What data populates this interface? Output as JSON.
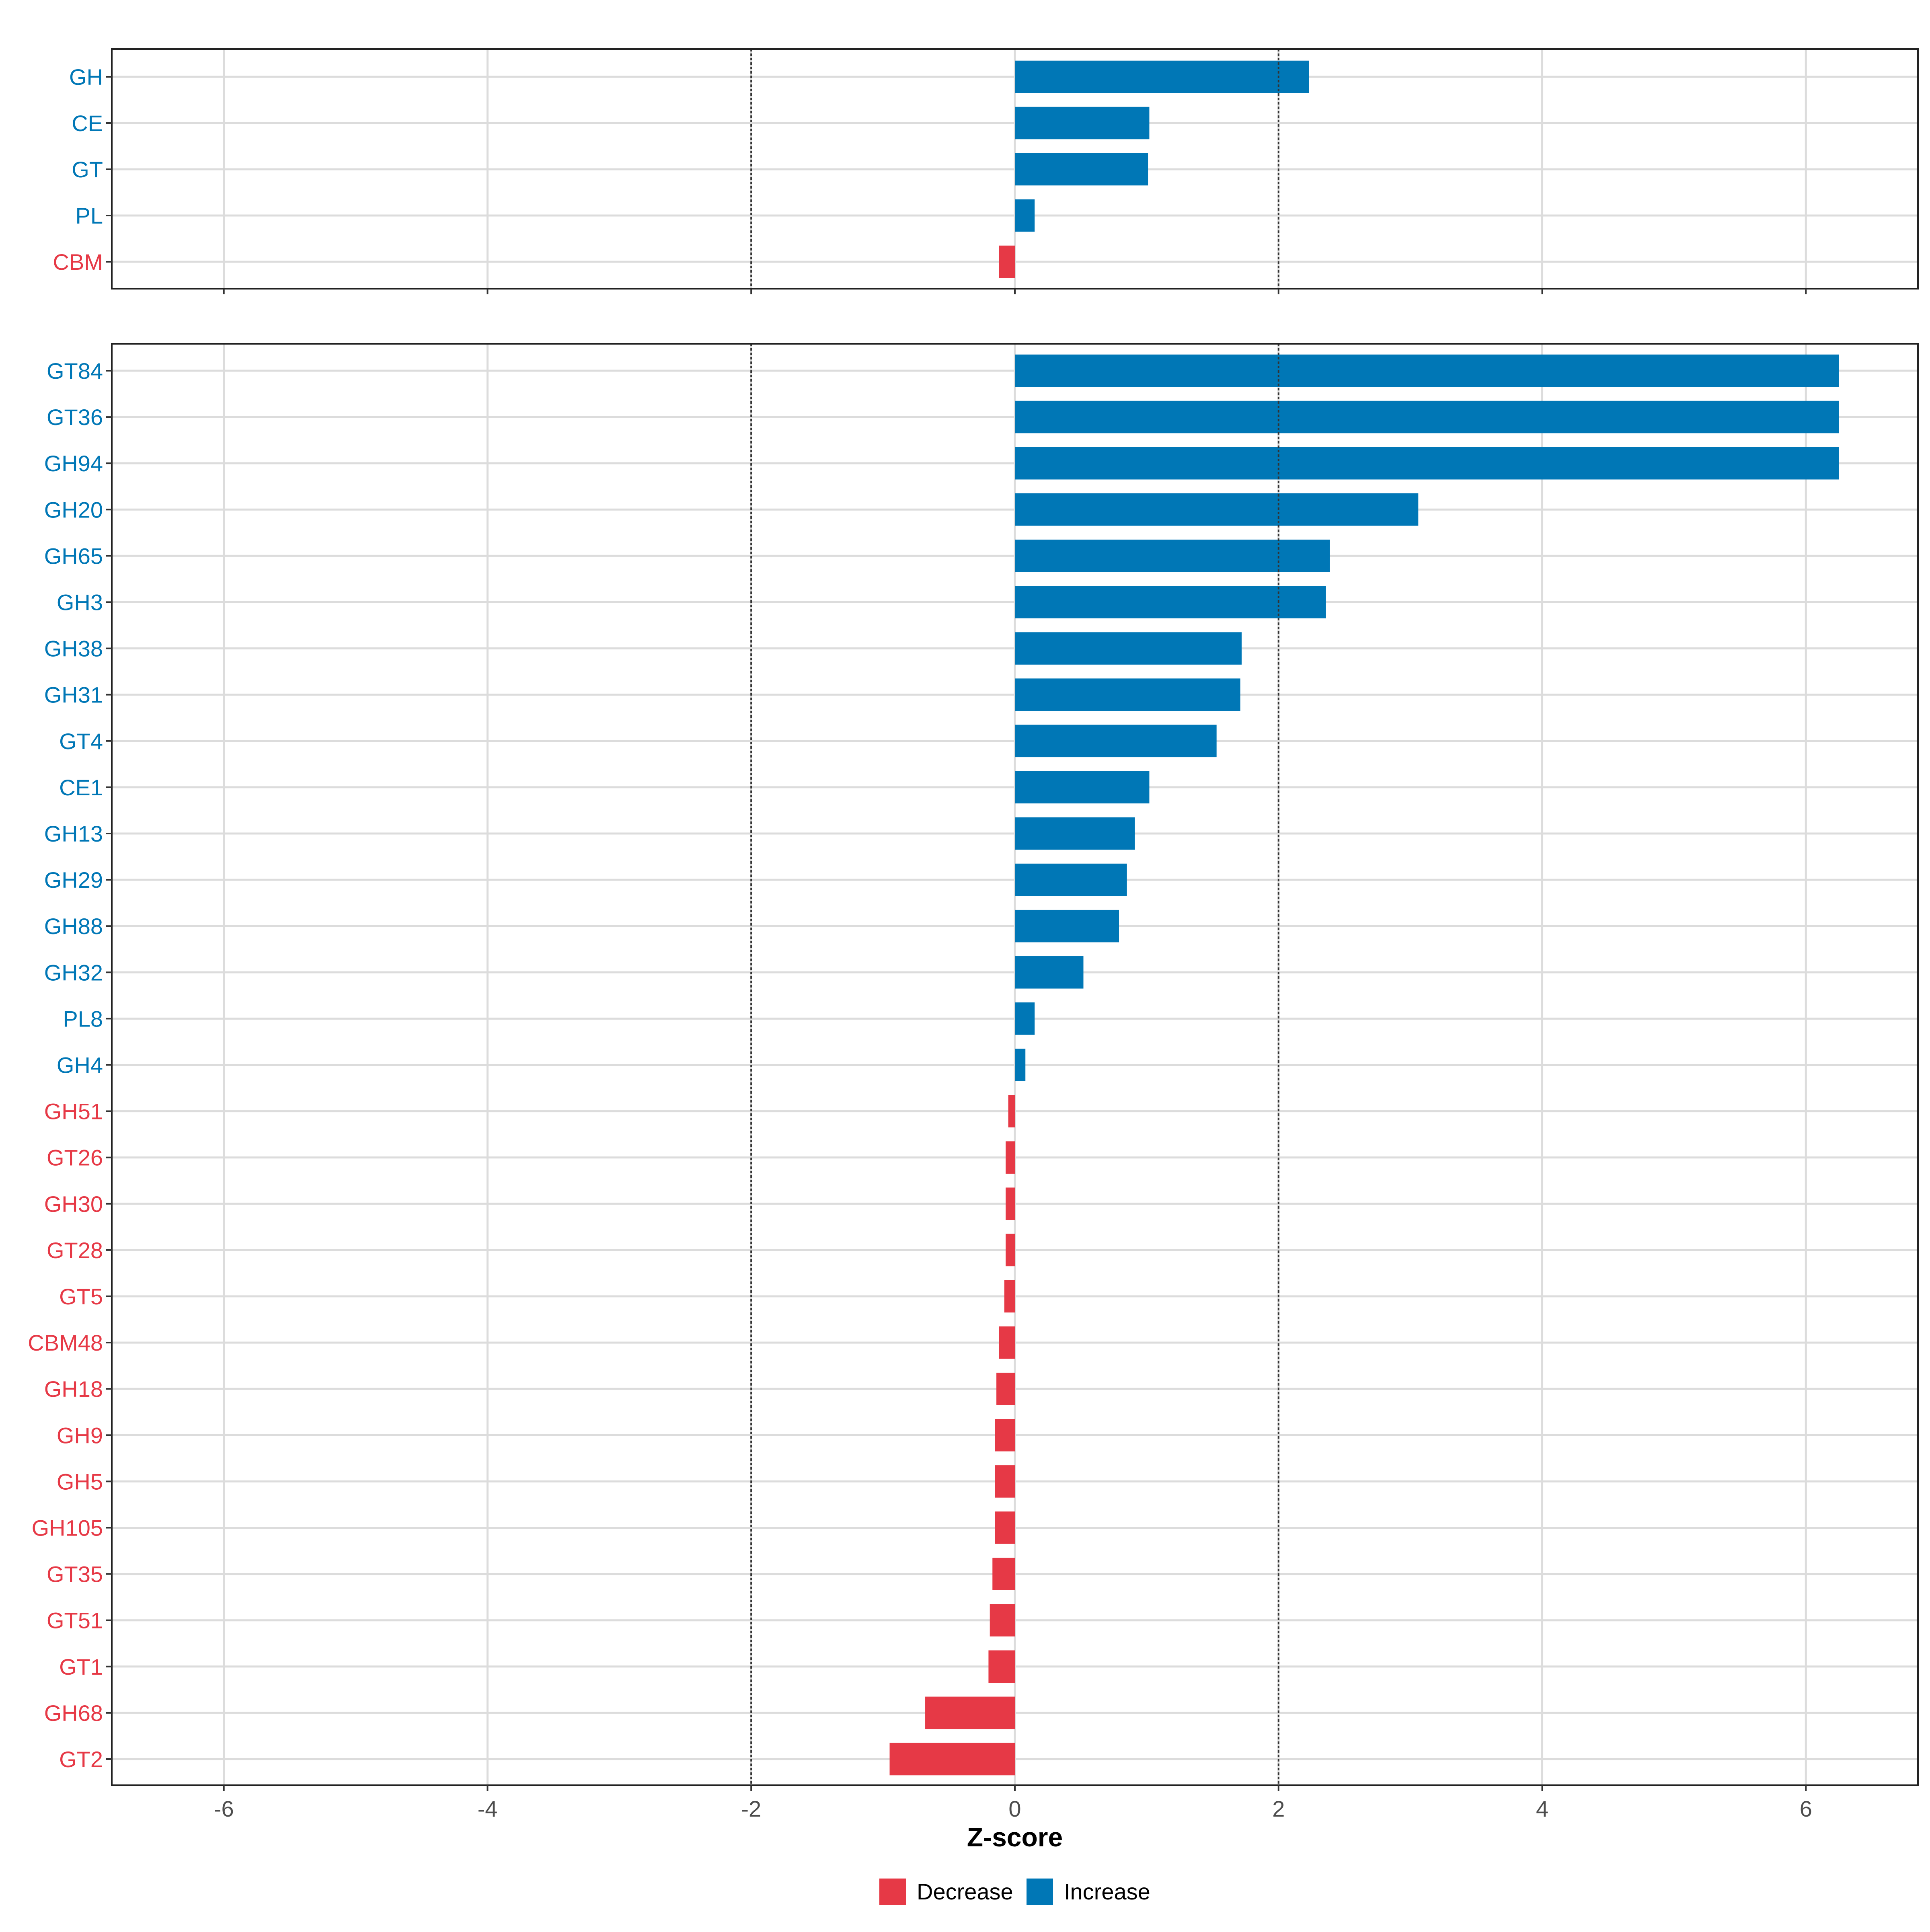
{
  "chart_data": {
    "type": "bar",
    "orientation": "horizontal",
    "xlabel": "Z-score",
    "ylabel": "",
    "xlim": [
      -6.85,
      6.85
    ],
    "x_ticks": [
      -6,
      -4,
      -2,
      0,
      2,
      4,
      6
    ],
    "x_tick_labels": [
      "-6",
      "-4",
      "-2",
      "0",
      "2",
      "4",
      "6"
    ],
    "reference_lines": [
      -2,
      2
    ],
    "grid": true,
    "colors": {
      "Decrease": "#E63946",
      "Increase": "#0077B6"
    },
    "legend": {
      "position": "bottom",
      "entries": [
        {
          "label": "Decrease",
          "color": "#E63946"
        },
        {
          "label": "Increase",
          "color": "#0077B6"
        }
      ]
    },
    "panels": [
      {
        "name": "top",
        "categories": [
          "GH",
          "CE",
          "GT",
          "PL",
          "CBM"
        ],
        "values": [
          2.23,
          1.02,
          1.01,
          0.15,
          -0.12
        ]
      },
      {
        "name": "bottom",
        "categories": [
          "GT84",
          "GT36",
          "GH94",
          "GH20",
          "GH65",
          "GH3",
          "GH38",
          "GH31",
          "GT4",
          "CE1",
          "GH13",
          "GH29",
          "GH88",
          "GH32",
          "PL8",
          "GH4",
          "GH51",
          "GT26",
          "GH30",
          "GT28",
          "GT5",
          "CBM48",
          "GH18",
          "GH9",
          "GH5",
          "GH105",
          "GT35",
          "GT51",
          "GT1",
          "GH68",
          "GT2"
        ],
        "values": [
          6.25,
          6.25,
          6.25,
          3.06,
          2.39,
          2.36,
          1.72,
          1.71,
          1.53,
          1.02,
          0.91,
          0.85,
          0.79,
          0.52,
          0.15,
          0.08,
          -0.05,
          -0.07,
          -0.07,
          -0.07,
          -0.08,
          -0.12,
          -0.14,
          -0.15,
          -0.15,
          -0.15,
          -0.17,
          -0.19,
          -0.2,
          -0.68,
          -0.95
        ]
      }
    ]
  }
}
